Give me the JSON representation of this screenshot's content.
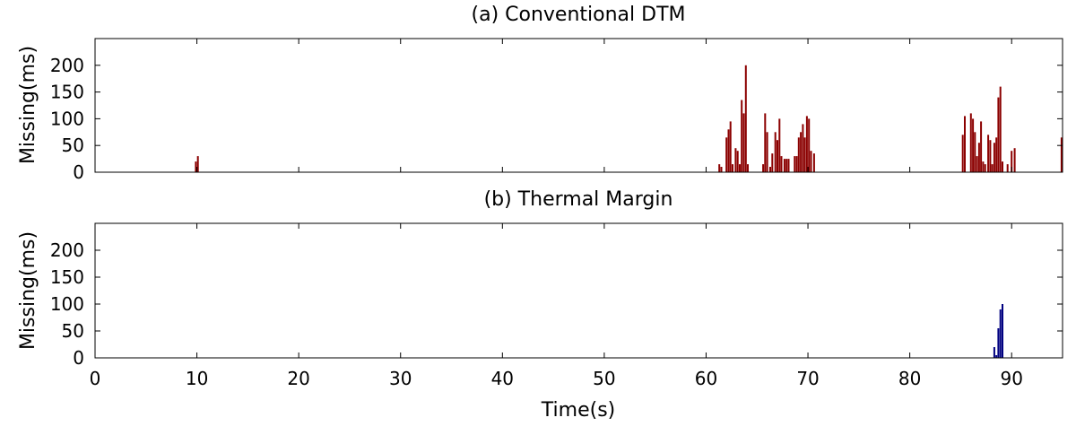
{
  "chart_data": [
    {
      "type": "bar",
      "title": "(a) Conventional DTM",
      "xlabel": "",
      "ylabel": "Missing(ms)",
      "xlim": [
        0,
        95
      ],
      "ylim": [
        0,
        250
      ],
      "yticks": [
        0,
        50,
        100,
        150,
        200
      ],
      "xticks": [
        0,
        10,
        20,
        30,
        40,
        50,
        60,
        70,
        80,
        90
      ],
      "show_xtick_labels": false,
      "color": "#8b0000",
      "x": [
        9.9,
        10.1,
        61.3,
        61.5,
        62.0,
        62.2,
        62.4,
        62.6,
        62.9,
        63.1,
        63.3,
        63.5,
        63.7,
        63.9,
        64.1,
        65.6,
        65.8,
        66.0,
        66.3,
        66.5,
        66.8,
        67.0,
        67.2,
        67.4,
        67.7,
        67.9,
        68.1,
        68.7,
        68.9,
        69.1,
        69.3,
        69.5,
        69.7,
        69.9,
        70.1,
        70.3,
        70.6,
        85.2,
        85.4,
        86.0,
        86.2,
        86.4,
        86.6,
        86.8,
        87.0,
        87.2,
        87.4,
        87.7,
        87.9,
        88.1,
        88.3,
        88.5,
        88.7,
        88.9,
        89.1,
        89.6,
        90.0,
        90.3,
        94.9
      ],
      "y": [
        20,
        30,
        15,
        10,
        65,
        80,
        95,
        15,
        45,
        40,
        15,
        135,
        110,
        200,
        15,
        15,
        110,
        75,
        10,
        35,
        75,
        60,
        100,
        30,
        25,
        25,
        25,
        30,
        30,
        65,
        75,
        90,
        65,
        105,
        100,
        40,
        35,
        70,
        105,
        110,
        100,
        75,
        30,
        55,
        95,
        20,
        15,
        70,
        60,
        15,
        55,
        65,
        140,
        160,
        20,
        15,
        40,
        45,
        65
      ]
    },
    {
      "type": "bar",
      "title": "(b) Thermal Margin",
      "xlabel": "Time(s)",
      "ylabel": "Missing(ms)",
      "xlim": [
        0,
        95
      ],
      "ylim": [
        0,
        250
      ],
      "yticks": [
        0,
        50,
        100,
        150,
        200
      ],
      "xticks": [
        0,
        10,
        20,
        30,
        40,
        50,
        60,
        70,
        80,
        90
      ],
      "show_xtick_labels": true,
      "color": "#000080",
      "x": [
        88.3,
        88.5,
        88.7,
        88.9,
        89.1
      ],
      "y": [
        20,
        5,
        55,
        90,
        100
      ]
    }
  ]
}
